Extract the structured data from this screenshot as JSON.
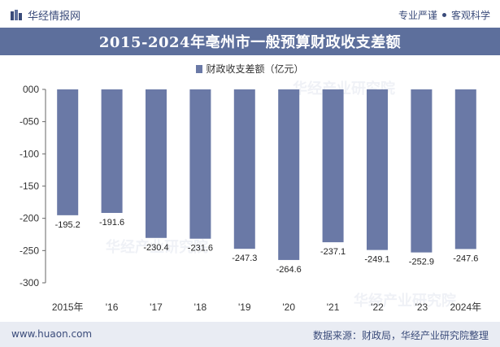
{
  "header": {
    "brand": "华经情报网",
    "tag1": "专业严谨",
    "tag2": "客观科学"
  },
  "colors": {
    "title_bg": "#5d6f9c",
    "bar": "#6a79a6",
    "footer_bg": "#e9ecf3"
  },
  "watermark_text": "华经产业研究院",
  "chart_data": {
    "type": "bar",
    "title": "2015-2024年亳州市一般预算财政收支差额",
    "categories": [
      "2015年",
      "'16",
      "'17",
      "'18",
      "'19",
      "'20",
      "'21",
      "'22",
      "'23",
      "2024年"
    ],
    "series": [
      {
        "name": "财政收支差额（亿元）",
        "values": [
          -195.2,
          -191.6,
          -230.4,
          -231.6,
          -247.3,
          -264.6,
          -237.1,
          -249.1,
          -252.9,
          -247.6
        ]
      }
    ],
    "data_labels": [
      "-195.2",
      "-191.6",
      "-230.4",
      "-231.6",
      "-247.3",
      "-264.6",
      "-237.1",
      "-249.1",
      "-252.9",
      "-247.6"
    ],
    "y_ticks": [
      "000",
      "-050",
      "-100",
      "-150",
      "-200",
      "-250",
      "-300"
    ],
    "y_tick_values": [
      0,
      -50,
      -100,
      -150,
      -200,
      -250,
      -300
    ],
    "ylim": [
      -300,
      0
    ],
    "xlabel": "",
    "ylabel": "",
    "grid": false,
    "legend_position": "top"
  },
  "footer": {
    "website": "www.huaon.com",
    "source": "数据来源：财政局，华经产业研究院整理"
  }
}
